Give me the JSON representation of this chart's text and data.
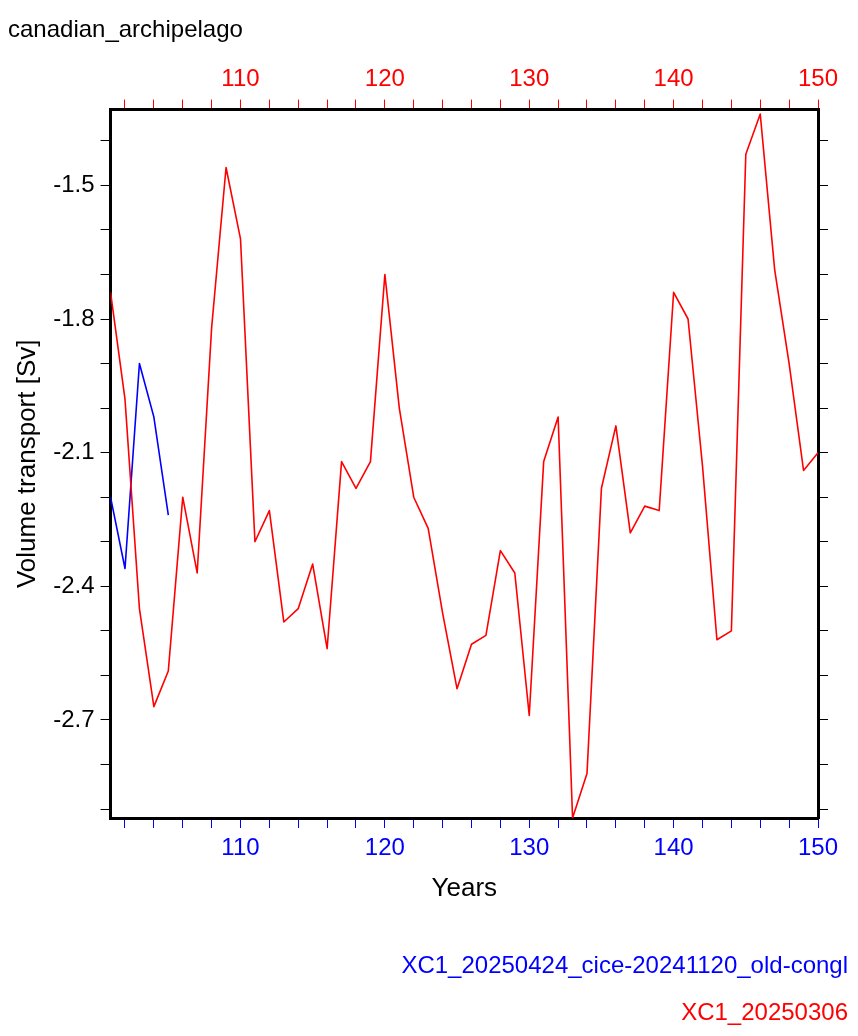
{
  "chart_data": {
    "type": "line",
    "title": "canadian_archipelago",
    "xlabel": "Years",
    "ylabel": "Volume transport [Sv]",
    "xlim": [
      101,
      150
    ],
    "xticks": [
      {
        "value": 102,
        "label": null
      },
      {
        "value": 104,
        "label": null
      },
      {
        "value": 106,
        "label": null
      },
      {
        "value": 108,
        "label": null
      },
      110,
      {
        "value": 112,
        "label": null
      },
      {
        "value": 114,
        "label": null
      },
      {
        "value": 116,
        "label": null
      },
      {
        "value": 118,
        "label": null
      },
      120,
      {
        "value": 122,
        "label": null
      },
      {
        "value": 124,
        "label": null
      },
      {
        "value": 126,
        "label": null
      },
      {
        "value": 128,
        "label": null
      },
      130,
      {
        "value": 132,
        "label": null
      },
      {
        "value": 134,
        "label": null
      },
      {
        "value": 136,
        "label": null
      },
      {
        "value": 138,
        "label": null
      },
      140,
      {
        "value": 142,
        "label": null
      },
      {
        "value": 144,
        "label": null
      },
      {
        "value": 146,
        "label": null
      },
      {
        "value": 148,
        "label": null
      },
      150
    ],
    "x2lim": [
      101,
      150
    ],
    "x2ticks": [
      {
        "value": 102,
        "label": null
      },
      {
        "value": 104,
        "label": null
      },
      {
        "value": 106,
        "label": null
      },
      {
        "value": 108,
        "label": null
      },
      110,
      {
        "value": 112,
        "label": null
      },
      {
        "value": 114,
        "label": null
      },
      {
        "value": 116,
        "label": null
      },
      {
        "value": 118,
        "label": null
      },
      120,
      {
        "value": 122,
        "label": null
      },
      {
        "value": 124,
        "label": null
      },
      {
        "value": 126,
        "label": null
      },
      {
        "value": 128,
        "label": null
      },
      130,
      {
        "value": 132,
        "label": null
      },
      {
        "value": 134,
        "label": null
      },
      {
        "value": 136,
        "label": null
      },
      {
        "value": 138,
        "label": null
      },
      140,
      {
        "value": 142,
        "label": null
      },
      {
        "value": 144,
        "label": null
      },
      {
        "value": 146,
        "label": null
      },
      {
        "value": 148,
        "label": null
      },
      150
    ],
    "ylim": [
      -2.92,
      -1.33
    ],
    "yticks": [
      {
        "value": -2.9,
        "label": null
      },
      {
        "value": -2.8,
        "label": null
      },
      -2.7,
      {
        "value": -2.6,
        "label": null
      },
      {
        "value": -2.5,
        "label": null
      },
      -2.4,
      {
        "value": -2.3,
        "label": null
      },
      {
        "value": -2.2,
        "label": null
      },
      -2.1,
      {
        "value": -2.0,
        "label": null
      },
      {
        "value": -1.9,
        "label": null
      },
      -1.8,
      {
        "value": -1.7,
        "label": null
      },
      {
        "value": -1.6,
        "label": null
      },
      -1.5,
      {
        "value": -1.4,
        "label": null
      }
    ],
    "grid": false,
    "legend": "bottom right",
    "marker": "none",
    "line_style": "solid",
    "series": [
      {
        "name": "XC1_20250424_cice-20241120_old-congl",
        "color": "#0000ff",
        "x": [
          101,
          102,
          103,
          104,
          105
        ],
        "values": [
          -2.2,
          -2.36,
          -1.9,
          -2.02,
          -2.24
        ]
      },
      {
        "name": "XC1_20250306",
        "color": "#ff0000",
        "axis": "x2",
        "x": [
          101,
          102,
          103,
          104,
          105,
          106,
          107,
          108,
          109,
          110,
          111,
          112,
          113,
          114,
          115,
          116,
          117,
          118,
          119,
          120,
          121,
          122,
          123,
          124,
          125,
          126,
          127,
          128,
          129,
          130,
          131,
          132,
          133,
          134,
          135,
          136,
          137,
          138,
          139,
          140,
          141,
          142,
          143,
          144,
          145,
          146,
          147,
          148,
          149,
          150
        ],
        "values": [
          -1.74,
          -1.98,
          -2.45,
          -2.67,
          -2.59,
          -2.2,
          -2.37,
          -1.82,
          -1.46,
          -1.62,
          -2.3,
          -2.23,
          -2.48,
          -2.45,
          -2.35,
          -2.54,
          -2.12,
          -2.18,
          -2.12,
          -1.7,
          -2.0,
          -2.2,
          -2.27,
          -2.46,
          -2.63,
          -2.53,
          -2.51,
          -2.32,
          -2.37,
          -2.69,
          -2.12,
          -2.02,
          -2.92,
          -2.82,
          -2.18,
          -2.04,
          -2.28,
          -2.22,
          -2.23,
          -1.74,
          -1.8,
          -2.13,
          -2.52,
          -2.5,
          -1.43,
          -1.34,
          -1.69,
          -1.9,
          -2.14,
          -2.1
        ]
      }
    ]
  }
}
